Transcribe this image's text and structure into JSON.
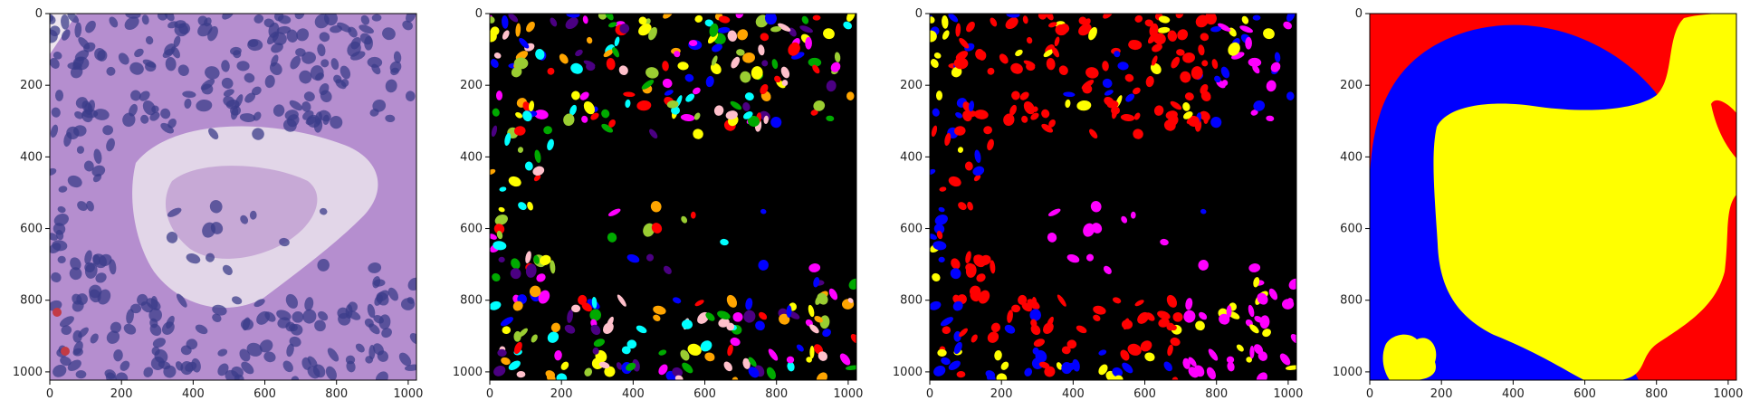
{
  "figure": {
    "panels": [
      {
        "name": "he-tissue-image",
        "content": "H&E stained histology patch"
      },
      {
        "name": "instance-mask",
        "content": "nuclei instance segmentation, multicolor"
      },
      {
        "name": "class-mask",
        "content": "nuclei class segmentation"
      },
      {
        "name": "region-mask",
        "content": "tissue region segmentation"
      }
    ],
    "axes": {
      "x_ticks": [
        "0",
        "200",
        "400",
        "600",
        "800",
        "1000"
      ],
      "y_ticks": [
        "0",
        "200",
        "400",
        "600",
        "800",
        "1000"
      ],
      "range": [
        0,
        1023
      ]
    }
  },
  "colors": {
    "tissue_bg": "#b58ecf",
    "nucleus_dark": "#3b3c8a",
    "stroma_light": "#e2d6e8",
    "mask_black": "#000000",
    "red": "#ff0000",
    "blue": "#0000ff",
    "yellow": "#ffff00",
    "magenta": "#ff00ff",
    "instance_palette": [
      "#ff0000",
      "#00ffff",
      "#ffff00",
      "#ff00ff",
      "#0000ff",
      "#00aa00",
      "#ffa500",
      "#ffc0cb",
      "#4b0082",
      "#9acd32"
    ]
  }
}
